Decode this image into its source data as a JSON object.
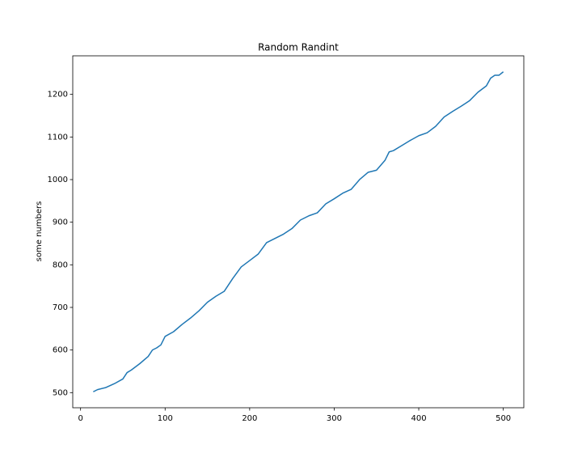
{
  "chart_data": {
    "type": "line",
    "title": "Random Randint",
    "y_label": "some numbers",
    "x": [
      15,
      20,
      30,
      40,
      50,
      55,
      60,
      70,
      80,
      85,
      90,
      95,
      100,
      110,
      120,
      130,
      140,
      150,
      160,
      170,
      180,
      190,
      200,
      210,
      220,
      230,
      240,
      250,
      260,
      270,
      280,
      290,
      300,
      310,
      320,
      330,
      340,
      350,
      360,
      365,
      370,
      380,
      390,
      400,
      410,
      420,
      430,
      440,
      450,
      460,
      470,
      480,
      485,
      490,
      495,
      500
    ],
    "series": [
      {
        "color": "#1f77b4",
        "values": [
          502,
          507,
          512,
          521,
          532,
          547,
          553,
          568,
          585,
          600,
          605,
          612,
          632,
          643,
          660,
          675,
          692,
          712,
          726,
          738,
          768,
          795,
          810,
          825,
          852,
          862,
          872,
          885,
          905,
          915,
          922,
          943,
          955,
          968,
          977,
          1000,
          1017,
          1022,
          1045,
          1065,
          1068,
          1080,
          1092,
          1103,
          1110,
          1125,
          1147,
          1160,
          1172,
          1185,
          1205,
          1220,
          1238,
          1245,
          1245,
          1253
        ]
      }
    ],
    "xlim": [
      -9.25,
      524.25
    ],
    "ylim": [
      464.5,
      1290.5
    ],
    "xticks": [
      0,
      100,
      200,
      300,
      400,
      500
    ],
    "yticks": [
      500,
      600,
      700,
      800,
      900,
      1000,
      1100,
      1200
    ]
  }
}
